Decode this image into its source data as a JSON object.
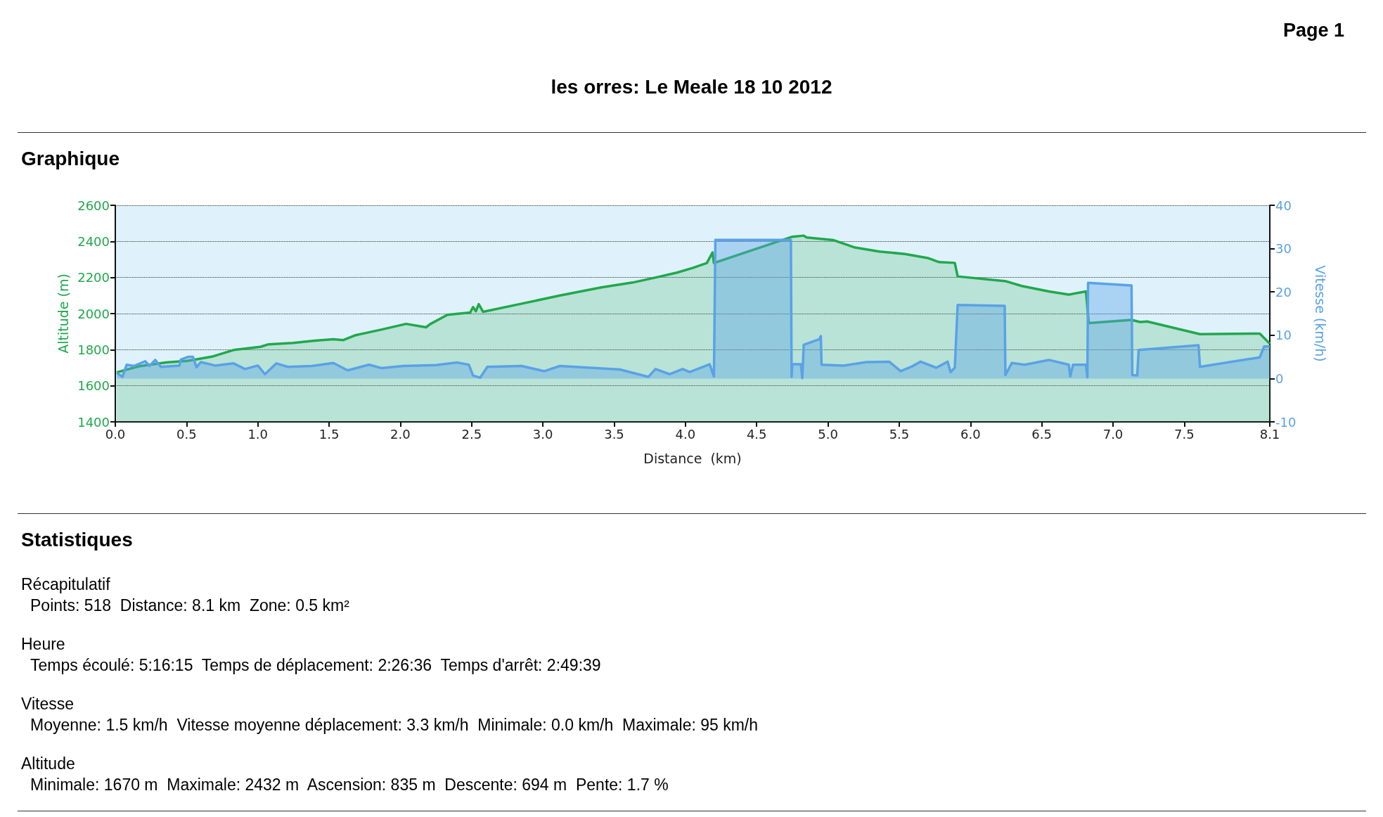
{
  "chart_data": {
    "type": "area",
    "title": "les orres: Le Meale 18 10 2012",
    "xlabel": "Distance  (km)",
    "ylabel": "Altitude (m)",
    "y2label": "Vitesse (km/h)",
    "xlim": [
      0,
      8.1
    ],
    "xticks": [
      {
        "value": 0,
        "label": "0.0"
      },
      {
        "value": 0.5,
        "label": "0.5"
      },
      {
        "value": 1,
        "label": "1.0"
      },
      {
        "value": 1.5,
        "label": "1.5"
      },
      {
        "value": 2,
        "label": "2.0"
      },
      {
        "value": 2.5,
        "label": "2.5"
      },
      {
        "value": 3,
        "label": "3.0"
      },
      {
        "value": 3.5,
        "label": "3.5"
      },
      {
        "value": 4,
        "label": "4.0"
      },
      {
        "value": 4.5,
        "label": "4.5"
      },
      {
        "value": 5,
        "label": "5.0"
      },
      {
        "value": 5.5,
        "label": "5.5"
      },
      {
        "value": 6,
        "label": "6.0"
      },
      {
        "value": 6.5,
        "label": "6.5"
      },
      {
        "value": 7,
        "label": "7.0"
      },
      {
        "value": 7.5,
        "label": "7.5"
      },
      {
        "value": 8.1,
        "label": "8.1"
      }
    ],
    "ylim": [
      1400,
      2600
    ],
    "yticks": [
      1400,
      1600,
      1800,
      2000,
      2200,
      2400,
      2600
    ],
    "y2lim": [
      -10,
      40
    ],
    "y2ticks": [
      -10,
      0,
      10,
      20,
      30,
      40
    ],
    "grid": "y",
    "marker": "none",
    "series": [
      {
        "color": "#21a84c",
        "x": [
          0.01,
          0.165,
          0.355,
          0.507,
          0.677,
          0.829,
          1.019,
          1.076,
          1.247,
          1.4,
          1.53,
          1.6,
          1.68,
          1.87,
          2.04,
          2.18,
          2.21,
          2.33,
          2.49,
          2.51,
          2.53,
          2.55,
          2.58,
          2.84,
          3.12,
          3.41,
          3.63,
          3.82,
          3.94,
          4.05,
          4.15,
          4.19,
          4.2,
          4.75,
          4.83,
          4.85,
          5.04,
          5.19,
          5.36,
          5.54,
          5.7,
          5.78,
          5.89,
          5.91,
          6.25,
          6.36,
          6.55,
          6.69,
          6.81,
          6.83,
          7.13,
          7.19,
          7.24,
          7.61,
          8.03,
          8.1
        ],
        "values": [
          1674,
          1708,
          1729,
          1738,
          1761,
          1798,
          1816,
          1830,
          1837,
          1850,
          1858,
          1853,
          1879,
          1912,
          1943,
          1924,
          1942,
          1993,
          2006,
          2036,
          2013,
          2052,
          2010,
          2053,
          2100,
          2145,
          2172,
          2205,
          2227,
          2253,
          2280,
          2339,
          2280,
          2426,
          2432,
          2422,
          2407,
          2366,
          2344,
          2330,
          2308,
          2285,
          2281,
          2206,
          2179,
          2153,
          2123,
          2105,
          2123,
          1947,
          1965,
          1953,
          1956,
          1886,
          1889,
          1833
        ]
      },
      {
        "color": "#5aa2e6",
        "axis": "y2",
        "x": [
          0.01,
          0.05,
          0.08,
          0.13,
          0.21,
          0.24,
          0.28,
          0.32,
          0.45,
          0.46,
          0.51,
          0.545,
          0.57,
          0.6,
          0.7,
          0.83,
          0.91,
          1.0,
          1.05,
          1.13,
          1.21,
          1.38,
          1.53,
          1.63,
          1.78,
          1.87,
          2.02,
          2.25,
          2.4,
          2.48,
          2.51,
          2.56,
          2.61,
          2.85,
          3.01,
          3.12,
          3.54,
          3.74,
          3.79,
          3.89,
          3.98,
          4.03,
          4.17,
          4.2,
          4.21,
          4.74,
          4.745,
          4.75,
          4.81,
          4.82,
          4.83,
          4.94,
          4.95,
          4.955,
          5.11,
          5.27,
          5.43,
          5.51,
          5.59,
          5.65,
          5.76,
          5.84,
          5.86,
          5.89,
          5.91,
          6.24,
          6.245,
          6.29,
          6.38,
          6.55,
          6.69,
          6.7,
          6.72,
          6.81,
          6.82,
          6.825,
          7.13,
          7.135,
          7.17,
          7.18,
          7.6,
          7.61,
          8.03,
          8.06,
          8.1
        ],
        "values": [
          1.3,
          0.4,
          3.2,
          2.9,
          4.0,
          2.9,
          4.3,
          2.7,
          3.0,
          4.4,
          5.0,
          5.0,
          2.6,
          3.8,
          3.0,
          3.5,
          2.2,
          3.0,
          1.0,
          3.5,
          2.7,
          2.9,
          3.6,
          1.9,
          3.2,
          2.4,
          2.9,
          3.1,
          3.7,
          3.2,
          0.7,
          0.2,
          2.7,
          2.9,
          1.7,
          2.9,
          2.1,
          0.4,
          2.2,
          1.0,
          2.2,
          1.5,
          3.3,
          0.5,
          32,
          32,
          0.4,
          3.3,
          3.3,
          0.1,
          7.8,
          9.1,
          9.8,
          3.2,
          3.0,
          3.8,
          3.9,
          1.7,
          2.8,
          3.9,
          2.5,
          3.9,
          1.5,
          2.5,
          17.0,
          16.8,
          0.8,
          3.6,
          3.2,
          4.3,
          3.2,
          0.5,
          3.2,
          3.2,
          0.3,
          22.1,
          21.5,
          0.8,
          0.7,
          6.6,
          7.7,
          2.7,
          4.9,
          7.4,
          7.4
        ]
      }
    ],
    "annotations": [
      "Page 1",
      "Graphique",
      "Statistiques",
      "Récapitulatif",
      "Points: 518  Distance: 8.1 km  Zone: 0.5 km²",
      "Heure",
      "Temps écoulé: 5:16:15  Temps de déplacement: 2:26:36  Temps d'arrêt: 2:49:39",
      "Vitesse",
      "Moyenne: 1.5 km/h  Vitesse moyenne déplacement: 3.3 km/h  Minimale: 0.0 km/h  Maximale: 95 km/h",
      "Altitude",
      "Minimale: 1670 m  Maximale: 2432 m  Ascension: 835 m  Descente: 694 m  Pente: 1.7 %"
    ]
  }
}
